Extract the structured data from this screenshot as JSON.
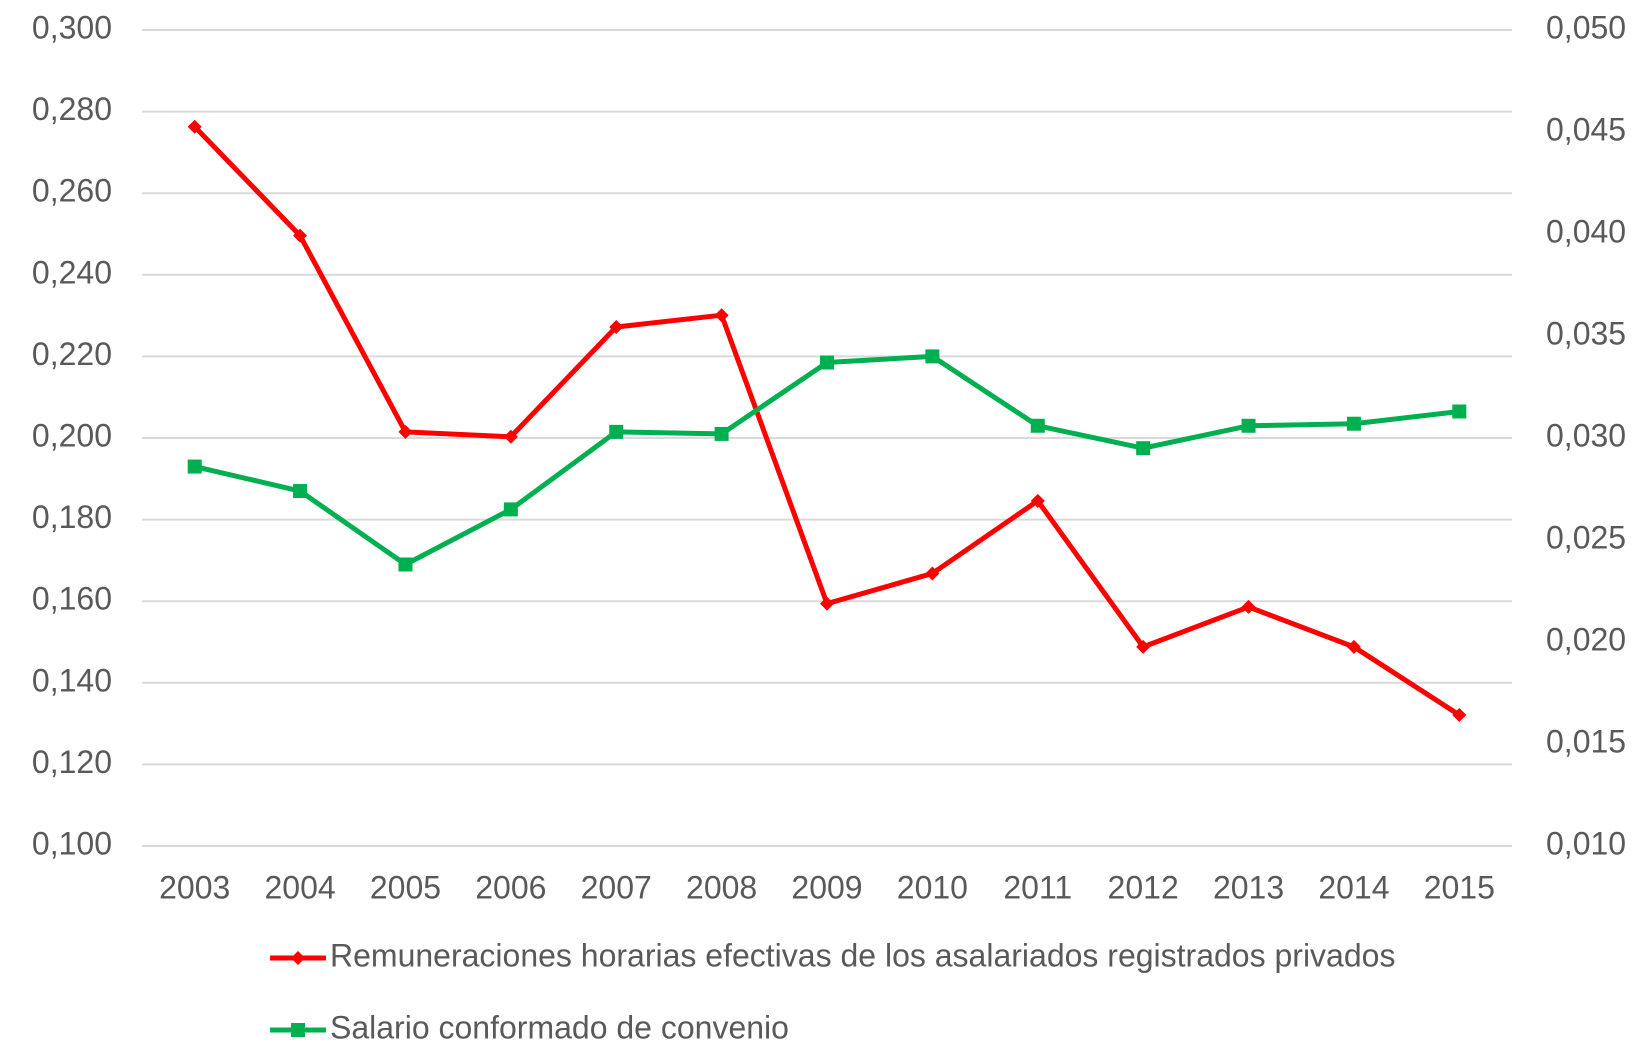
{
  "chart_data": {
    "type": "line",
    "categories": [
      "2003",
      "2004",
      "2005",
      "2006",
      "2007",
      "2008",
      "2009",
      "2010",
      "2011",
      "2012",
      "2013",
      "2014",
      "2015"
    ],
    "series": [
      {
        "name": "Remuneraciones horarias efectivas de los asalariados registrados privados",
        "color": "#ff0000",
        "marker": "diamond",
        "values": [
          0.2763,
          0.2496,
          0.2015,
          0.2003,
          0.2272,
          0.2301,
          0.1594,
          0.1668,
          0.1846,
          0.1488,
          0.1586,
          0.1488,
          0.1321
        ]
      },
      {
        "name": "Salario conformado de convenio",
        "color": "#00b050",
        "marker": "square",
        "axis": "y2",
        "values": [
          0.0286,
          0.0274,
          0.0238,
          0.0265,
          0.0303,
          0.0302,
          0.0337,
          0.034,
          0.0306,
          0.0295,
          0.0306,
          0.0307,
          0.0313
        ]
      }
    ],
    "ylim": [
      0.1,
      0.3
    ],
    "yticks": [
      {
        "value": 0.1,
        "label": "0,100"
      },
      {
        "value": 0.12,
        "label": "0,120"
      },
      {
        "value": 0.14,
        "label": "0,140"
      },
      {
        "value": 0.16,
        "label": "0,160"
      },
      {
        "value": 0.18,
        "label": "0,180"
      },
      {
        "value": 0.2,
        "label": "0,200"
      },
      {
        "value": 0.22,
        "label": "0,220"
      },
      {
        "value": 0.24,
        "label": "0,240"
      },
      {
        "value": 0.26,
        "label": "0,260"
      },
      {
        "value": 0.28,
        "label": "0,280"
      },
      {
        "value": 0.3,
        "label": "0,300"
      }
    ],
    "y2lim": [
      0.01,
      0.05
    ],
    "y2ticks": [
      {
        "value": 0.01,
        "label": "0,010"
      },
      {
        "value": 0.015,
        "label": "0,015"
      },
      {
        "value": 0.02,
        "label": "0,020"
      },
      {
        "value": 0.025,
        "label": "0,025"
      },
      {
        "value": 0.03,
        "label": "0,030"
      },
      {
        "value": 0.035,
        "label": "0,035"
      },
      {
        "value": 0.04,
        "label": "0,040"
      },
      {
        "value": 0.045,
        "label": "0,045"
      },
      {
        "value": 0.05,
        "label": "0,050"
      }
    ],
    "grid": true,
    "legend": "bottom"
  }
}
